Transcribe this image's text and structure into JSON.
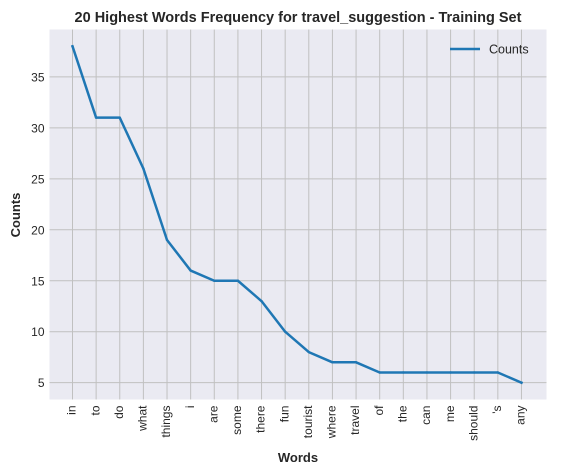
{
  "chart_data": {
    "type": "line",
    "title": "20 Highest Words Frequency for travel_suggestion - Training Set",
    "xlabel": "Words",
    "ylabel": "Counts",
    "categories": [
      "in",
      "to",
      "do",
      "what",
      "things",
      "i",
      "are",
      "some",
      "there",
      "fun",
      "tourist",
      "where",
      "travel",
      "of",
      "the",
      "can",
      "me",
      "should",
      "'s",
      "any"
    ],
    "series": [
      {
        "name": "Counts",
        "values": [
          38,
          31,
          31,
          26,
          19,
          16,
          15,
          15,
          13,
          10,
          8,
          7,
          7,
          6,
          6,
          6,
          6,
          6,
          6,
          5
        ],
        "color": "#1f77b4"
      }
    ],
    "ylim": [
      3.35,
      39.65
    ],
    "yticks": [
      5,
      10,
      15,
      20,
      25,
      30,
      35
    ],
    "grid": true,
    "legend_position": "top-right",
    "colors": {
      "plot_background": "#eaeaf2",
      "grid": "#c0c0c0",
      "line": "#1f77b4",
      "text": "#262626"
    }
  }
}
